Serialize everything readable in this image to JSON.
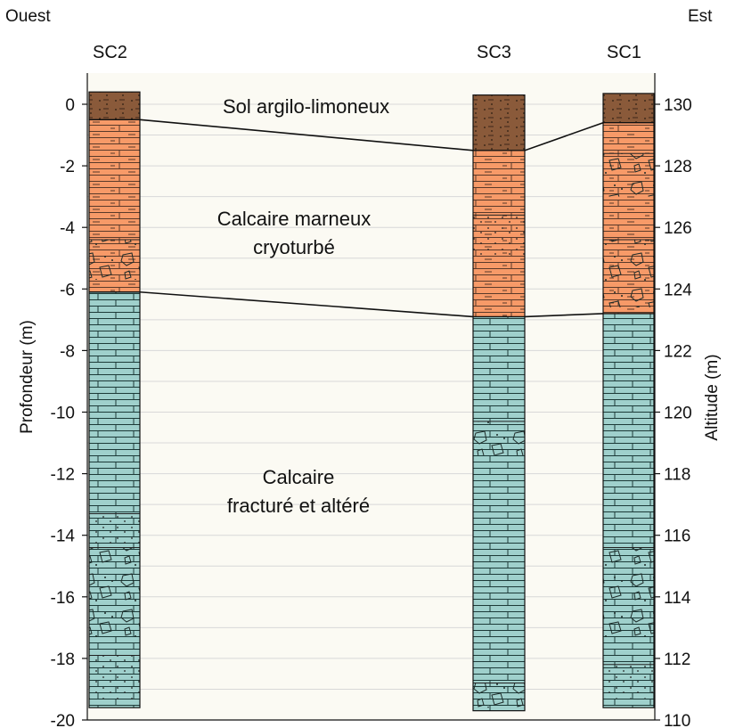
{
  "labels": {
    "west": "Ouest",
    "east": "Est",
    "left_axis": "Profondeur (m)",
    "right_axis": "Altitude (m)"
  },
  "left_axis": {
    "min": -20,
    "max": 0,
    "ticks": [
      0,
      -2,
      -4,
      -6,
      -8,
      -10,
      -12,
      -14,
      -16,
      -18,
      -20
    ]
  },
  "right_axis": {
    "min": 110,
    "max": 130,
    "ticks": [
      130,
      128,
      126,
      124,
      122,
      120,
      118,
      116,
      114,
      112,
      110
    ]
  },
  "layers": {
    "soil": {
      "name": "Sol argilo-limoneux",
      "color": "#8a5a3a"
    },
    "marly": {
      "line1": "Calcaire marneux",
      "line2": "cryoturbé",
      "color": "#f79a68"
    },
    "limestone": {
      "line1": "Calcaire",
      "line2": "fracturé et altéré",
      "color": "#9fd0cc"
    }
  },
  "cores": [
    {
      "id": "SC2",
      "top": 0.4,
      "soil_base": -0.5,
      "marly_base": -6.1,
      "bottom": -19.6
    },
    {
      "id": "SC3",
      "top": 0.3,
      "soil_base": -1.5,
      "marly_base": -6.9,
      "bottom": -19.7
    },
    {
      "id": "SC1",
      "top": 0.35,
      "soil_base": -0.6,
      "marly_base": -6.8,
      "bottom": -19.6
    }
  ]
}
